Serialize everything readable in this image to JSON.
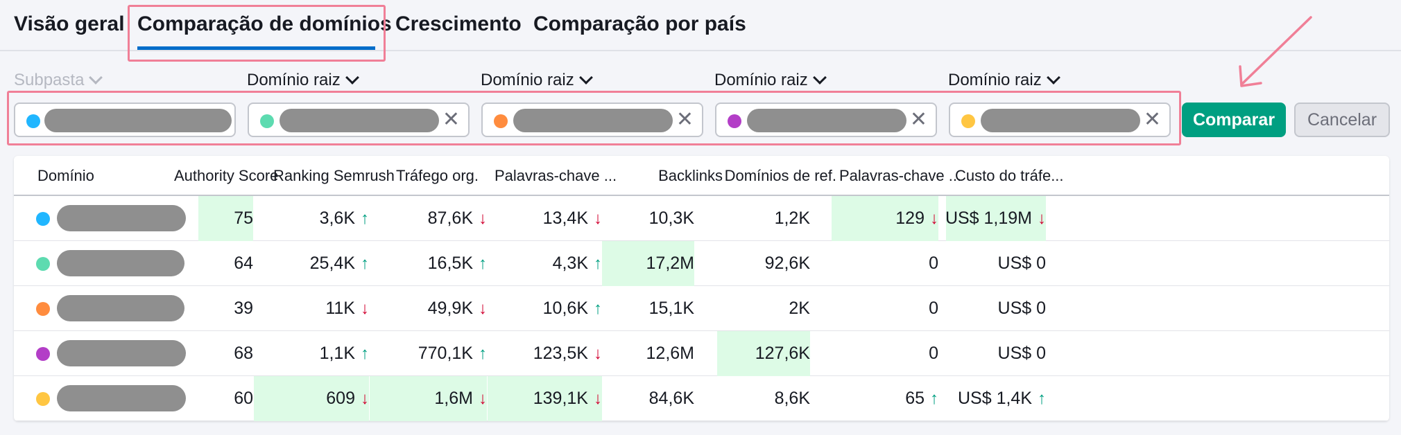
{
  "tabs": [
    "Visão geral",
    "Comparação de domínios",
    "Crescimento",
    "Comparação por país"
  ],
  "filters": {
    "labels": [
      "Subpasta",
      "Domínio raiz",
      "Domínio raiz",
      "Domínio raiz",
      "Domínio raiz"
    ],
    "dot_colors": [
      "#20b6ff",
      "#5ddbb0",
      "#ff8c3e",
      "#b33ec7",
      "#ffc642"
    ],
    "clear_icon": "✕"
  },
  "buttons": {
    "compare": "Comparar",
    "cancel": "Cancelar"
  },
  "table": {
    "headers": [
      "Domínio",
      "Authority Score",
      "Ranking Semrush",
      "Tráfego org.",
      "Palavras-chave ...",
      "Backlinks",
      "Domínios de ref.",
      "Palavras-chave ...",
      "Custo do tráfe..."
    ],
    "rows": [
      {
        "dot": "#20b6ff",
        "values": [
          "75",
          "3,6K",
          "87,6K",
          "13,4K",
          "10,3K",
          "1,2K",
          "129",
          "US$ 1,19M"
        ]
      },
      {
        "dot": "#5ddbb0",
        "values": [
          "64",
          "25,4K",
          "16,5K",
          "4,3K",
          "17,2M",
          "92,6K",
          "0",
          "US$ 0"
        ]
      },
      {
        "dot": "#ff8c3e",
        "values": [
          "39",
          "11K",
          "49,9K",
          "10,6K",
          "15,1K",
          "2K",
          "0",
          "US$ 0"
        ]
      },
      {
        "dot": "#b33ec7",
        "values": [
          "68",
          "1,1K",
          "770,1K",
          "123,5K",
          "12,6M",
          "127,6K",
          "0",
          "US$ 0"
        ]
      },
      {
        "dot": "#ffc642",
        "values": [
          "60",
          "609",
          "1,6M",
          "139,1K",
          "84,6K",
          "8,6K",
          "65",
          "US$ 1,4K"
        ]
      }
    ],
    "trends": [
      [
        "",
        "up",
        "down",
        "down",
        "",
        "",
        "down",
        "down"
      ],
      [
        "",
        "up",
        "up",
        "up",
        "",
        "",
        "",
        ""
      ],
      [
        "",
        "down",
        "down",
        "up",
        "",
        "",
        "",
        ""
      ],
      [
        "",
        "up",
        "up",
        "down",
        "",
        "",
        "",
        ""
      ],
      [
        "",
        "down",
        "down",
        "down",
        "",
        "",
        "up",
        "up"
      ]
    ],
    "highlights": [
      [
        true,
        false,
        false,
        false,
        false,
        false,
        true,
        true
      ],
      [
        false,
        false,
        false,
        false,
        true,
        false,
        false,
        false
      ],
      [
        false,
        false,
        false,
        false,
        false,
        false,
        false,
        false
      ],
      [
        false,
        false,
        false,
        false,
        false,
        true,
        false,
        false
      ],
      [
        false,
        true,
        true,
        true,
        false,
        false,
        false,
        false
      ]
    ],
    "colors": {
      "up": "#009f81",
      "down": "#d1002f",
      "highlight": "#ddfbe6"
    }
  }
}
